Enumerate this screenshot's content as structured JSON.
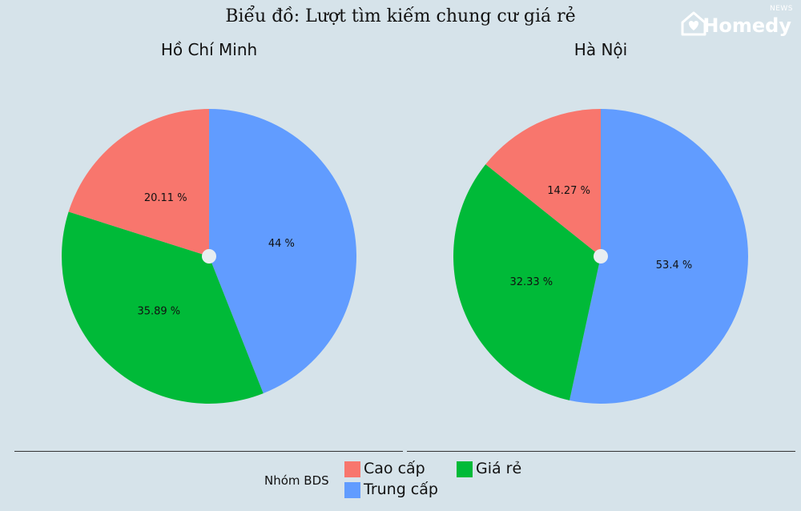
{
  "title": "Biểu đồ: Lượt tìm kiếm chung cư giá rẻ",
  "brand": {
    "name": "Homedy",
    "tag": "NEWS"
  },
  "legend": {
    "title": "Nhóm BDS",
    "items": [
      {
        "label": "Cao cấp",
        "color": "#f8766d"
      },
      {
        "label": "Giá rẻ",
        "color": "#00ba38"
      },
      {
        "label": "Trung cấp",
        "color": "#619cff"
      }
    ]
  },
  "chart_data": [
    {
      "type": "pie",
      "title": "Hồ Chí Minh",
      "slices": [
        {
          "name": "Trung cấp",
          "value": 44,
          "label": "44 %",
          "color": "#619cff"
        },
        {
          "name": "Giá rẻ",
          "value": 35.89,
          "label": "35.89 %",
          "color": "#00ba38"
        },
        {
          "name": "Cao cấp",
          "value": 20.11,
          "label": "20.11 %",
          "color": "#f8766d"
        }
      ]
    },
    {
      "type": "pie",
      "title": "Hà Nội",
      "slices": [
        {
          "name": "Trung cấp",
          "value": 53.4,
          "label": "53.4 %",
          "color": "#619cff"
        },
        {
          "name": "Giá rẻ",
          "value": 32.33,
          "label": "32.33 %",
          "color": "#00ba38"
        },
        {
          "name": "Cao cấp",
          "value": 14.27,
          "label": "14.27 %",
          "color": "#f8766d"
        }
      ]
    }
  ]
}
